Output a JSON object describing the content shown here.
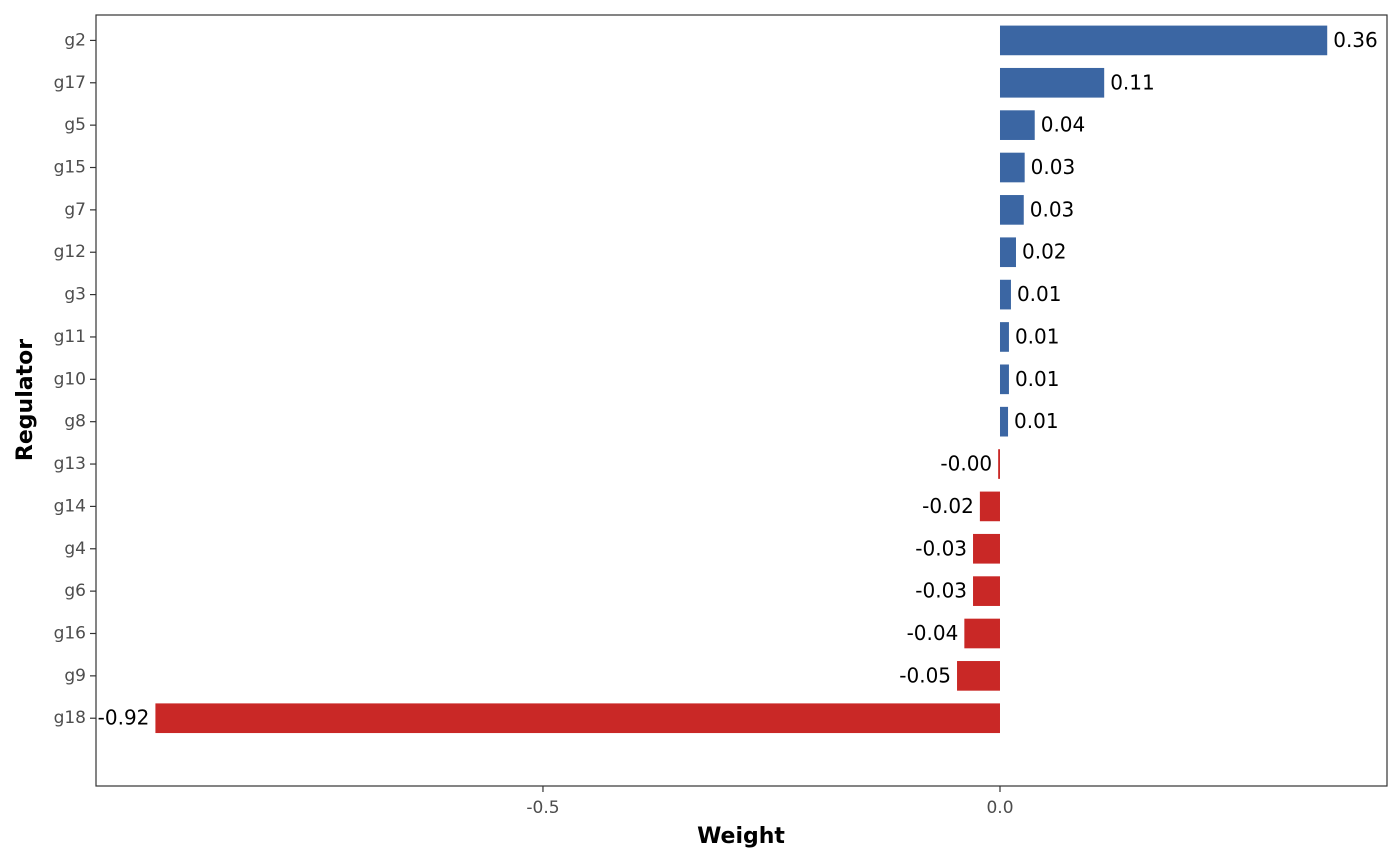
{
  "chart_data": {
    "type": "barh",
    "x_label": "Weight",
    "y_label": "Regulator",
    "categories": [
      "g2",
      "g17",
      "g5",
      "g15",
      "g7",
      "g12",
      "g3",
      "g11",
      "g10",
      "g8",
      "g13",
      "g14",
      "g4",
      "g6",
      "g16",
      "g9",
      "g18"
    ],
    "values": [
      0.358,
      0.114,
      0.038,
      0.027,
      0.026,
      0.0175,
      0.012,
      0.0098,
      0.0098,
      0.0088,
      -0.002,
      -0.022,
      -0.0295,
      -0.0295,
      -0.039,
      -0.047,
      -0.924
    ],
    "value_labels": [
      "0.36",
      "0.11",
      "0.04",
      "0.03",
      "0.03",
      "0.02",
      "0.01",
      "0.01",
      "0.01",
      "0.01",
      "-0.00",
      "-0.02",
      "-0.03",
      "-0.03",
      "-0.04",
      "-0.05",
      "-0.92"
    ],
    "color_positive": "#3b66a3",
    "color_negative": "#c92826",
    "xlim": [
      -0.989,
      0.4234
    ],
    "xticks": [
      -0.5,
      {
        "value": 0,
        "label": "0.0"
      }
    ]
  }
}
